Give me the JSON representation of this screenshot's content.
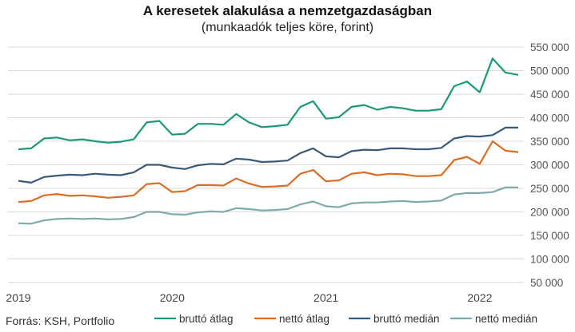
{
  "chart_data": {
    "type": "line",
    "title": "A keresetek alakulása a nemzetgazdaságban",
    "subtitle": "(munkaadók teljes köre, forint)",
    "source": "Forrás: KSH, Portfolio",
    "ylim": [
      50000,
      550000
    ],
    "y_ticks": [
      50000,
      100000,
      150000,
      200000,
      250000,
      300000,
      350000,
      400000,
      450000,
      500000,
      550000
    ],
    "y_tick_labels": [
      "50 000",
      "100 000",
      "150 000",
      "200 000",
      "250 000",
      "300 000",
      "350 000",
      "400 000",
      "450 000",
      "500 000",
      "550 000"
    ],
    "x_tick_labels": [
      "2019",
      "2020",
      "2021",
      "2022"
    ],
    "x_tick_index": [
      0,
      12,
      24,
      36
    ],
    "grid": true,
    "legend": "bottom",
    "x": [
      "2019-01",
      "2019-02",
      "2019-03",
      "2019-04",
      "2019-05",
      "2019-06",
      "2019-07",
      "2019-08",
      "2019-09",
      "2019-10",
      "2019-11",
      "2019-12",
      "2020-01",
      "2020-02",
      "2020-03",
      "2020-04",
      "2020-05",
      "2020-06",
      "2020-07",
      "2020-08",
      "2020-09",
      "2020-10",
      "2020-11",
      "2020-12",
      "2021-01",
      "2021-02",
      "2021-03",
      "2021-04",
      "2021-05",
      "2021-06",
      "2021-07",
      "2021-08",
      "2021-09",
      "2021-10",
      "2021-11",
      "2021-12",
      "2022-01",
      "2022-02",
      "2022-03",
      "2022-04"
    ],
    "series": [
      {
        "name": "bruttó átlag",
        "color": "#1a9a78",
        "values": [
          333000,
          335000,
          356000,
          358000,
          352000,
          354000,
          350000,
          347000,
          349000,
          354000,
          390000,
          393000,
          364000,
          366000,
          387000,
          387000,
          385000,
          408000,
          390000,
          380000,
          382000,
          385000,
          423000,
          435000,
          398000,
          401000,
          423000,
          427000,
          417000,
          423000,
          420000,
          415000,
          415000,
          418000,
          467000,
          477000,
          454000,
          526000,
          496000,
          491000
        ]
      },
      {
        "name": "nettó átlag",
        "color": "#e06c24",
        "values": [
          221000,
          223000,
          235000,
          238000,
          234000,
          235000,
          233000,
          230000,
          232000,
          235000,
          259000,
          261000,
          242000,
          244000,
          257000,
          257000,
          256000,
          271000,
          260000,
          253000,
          254000,
          256000,
          281000,
          289000,
          265000,
          267000,
          281000,
          284000,
          278000,
          281000,
          280000,
          276000,
          276000,
          278000,
          310000,
          317000,
          302000,
          350000,
          330000,
          327000
        ]
      },
      {
        "name": "bruttó medián",
        "color": "#3a5a78",
        "values": [
          266000,
          262000,
          274000,
          277000,
          279000,
          278000,
          281000,
          279000,
          278000,
          284000,
          300000,
          300000,
          294000,
          291000,
          299000,
          302000,
          301000,
          313000,
          311000,
          306000,
          307000,
          309000,
          325000,
          335000,
          318000,
          316000,
          329000,
          332000,
          331000,
          335000,
          335000,
          333000,
          333000,
          336000,
          356000,
          361000,
          360000,
          363000,
          379000,
          379000
        ]
      },
      {
        "name": "nettó medián",
        "color": "#7eaaaa",
        "values": [
          176000,
          175000,
          182000,
          185000,
          186000,
          185000,
          186000,
          184000,
          185000,
          189000,
          200000,
          200000,
          195000,
          194000,
          199000,
          201000,
          200000,
          208000,
          206000,
          203000,
          204000,
          206000,
          216000,
          222000,
          212000,
          210000,
          218000,
          220000,
          220000,
          222000,
          223000,
          221000,
          222000,
          224000,
          237000,
          240000,
          240000,
          242000,
          252000,
          252000
        ]
      }
    ]
  }
}
